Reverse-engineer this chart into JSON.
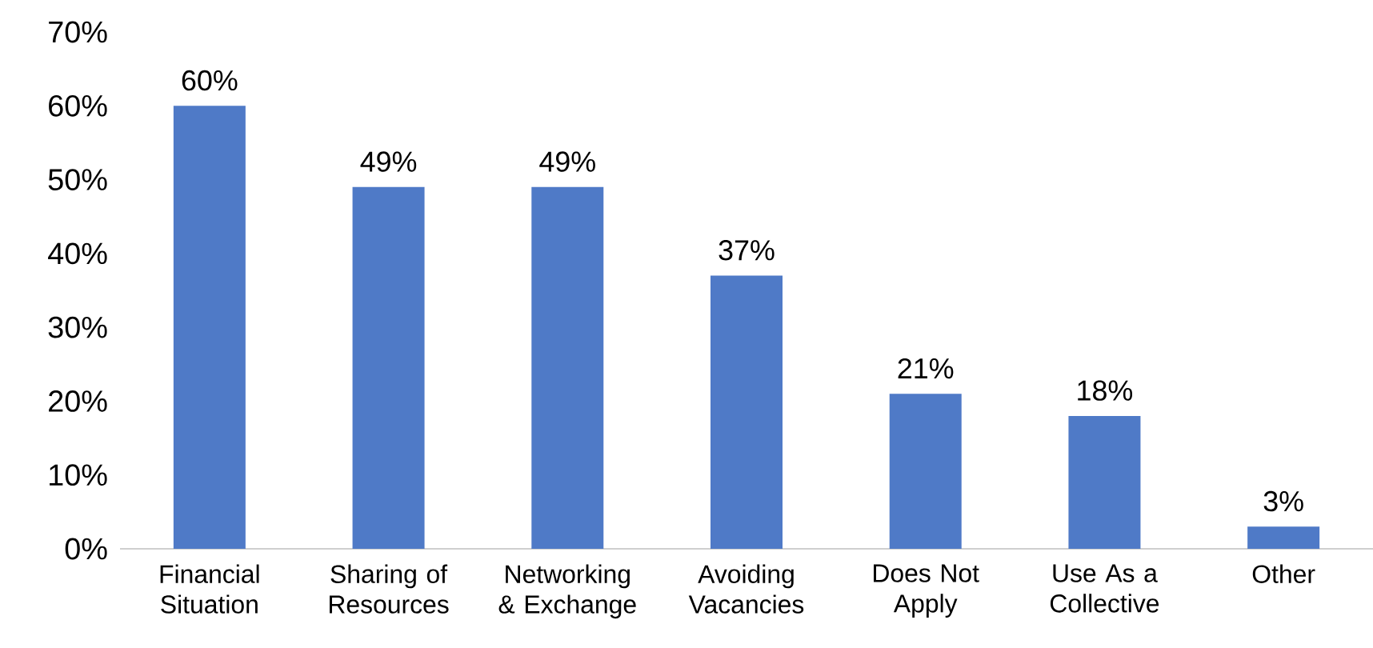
{
  "chart_data": {
    "type": "bar",
    "categories": [
      "Financial Situation",
      "Sharing of Resources",
      "Networking & Exchange",
      "Avoiding Vacancies",
      "Does Not Apply",
      "Use As a Collective",
      "Other"
    ],
    "values": [
      60,
      49,
      49,
      37,
      21,
      18,
      3
    ],
    "value_labels": [
      "60%",
      "49%",
      "49%",
      "37%",
      "21%",
      "18%",
      "3%"
    ],
    "color": "#4f7ac7",
    "ylim": [
      0,
      70
    ],
    "yticks": [
      {
        "value": 0,
        "label": "0%"
      },
      {
        "value": 10,
        "label": "10%"
      },
      {
        "value": 20,
        "label": "20%"
      },
      {
        "value": 30,
        "label": "30%"
      },
      {
        "value": 40,
        "label": "40%"
      },
      {
        "value": 50,
        "label": "50%"
      },
      {
        "value": 60,
        "label": "60%"
      },
      {
        "value": 70,
        "label": "70%"
      }
    ],
    "grid": false
  }
}
